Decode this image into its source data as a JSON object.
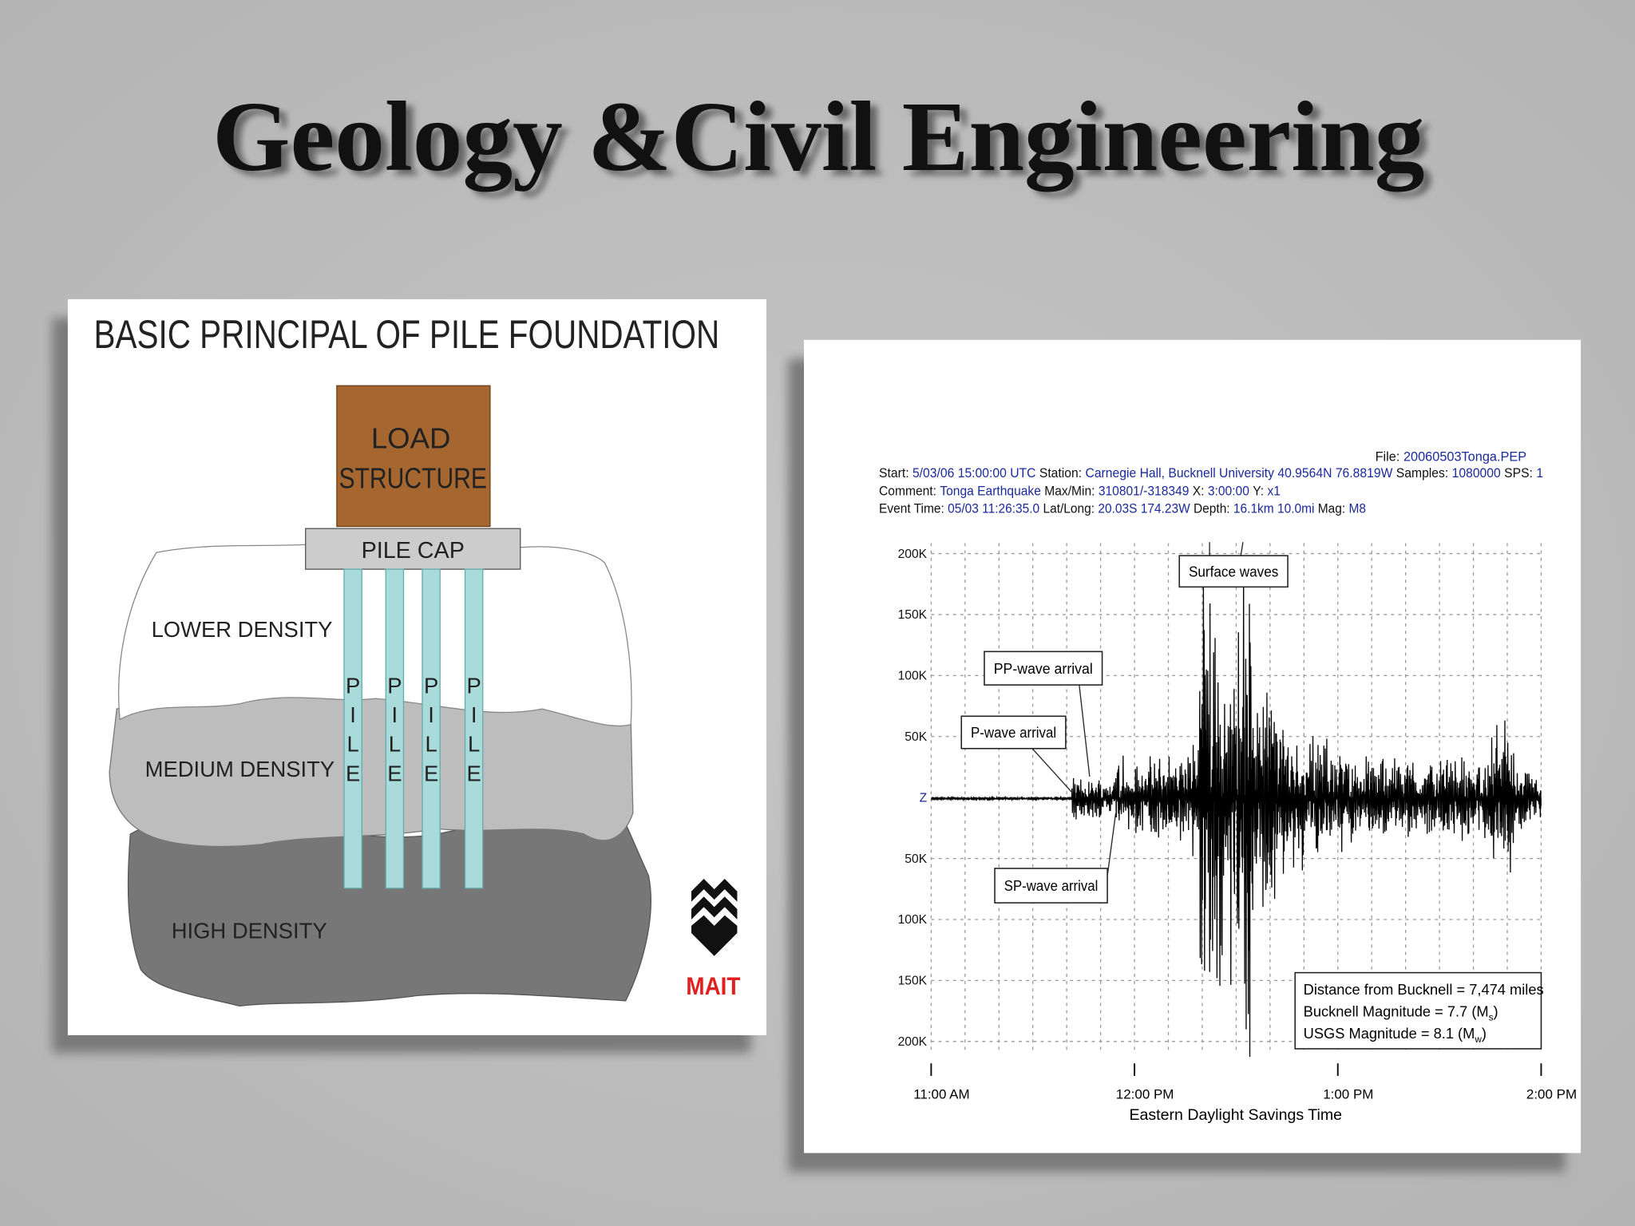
{
  "title": "Geology &Civil Engineering",
  "pile_diagram": {
    "heading": "BASIC PRINCIPAL OF PILE FOUNDATION",
    "load_structure": [
      "LOAD",
      "STRUCTURE"
    ],
    "pile_cap": "PILE CAP",
    "layers": [
      "LOWER DENSITY",
      "MEDIUM DENSITY",
      "HIGH DENSITY"
    ],
    "pile_letters": [
      "P",
      "I",
      "L",
      "E"
    ],
    "logo": "MAIT"
  },
  "seismogram": {
    "file": [
      "File:",
      "20060503Tonga.PEP"
    ],
    "header": [
      [
        [
          "Start:",
          "5/03/06 15:00:00 UTC"
        ],
        [
          "Station:",
          "Carnegie Hall, Bucknell University 40.9564N 76.8819W"
        ],
        [
          "Samples:",
          "1080000"
        ],
        [
          "SPS:",
          "1"
        ]
      ],
      [
        [
          "Comment:",
          "Tonga Earthquake"
        ],
        [
          "Max/Min:",
          "310801/-318349"
        ],
        [
          "X:",
          "3:00:00"
        ],
        [
          "Y:",
          "x1"
        ]
      ],
      [
        [
          "Event Time:",
          "05/03 11:26:35.0"
        ],
        [
          "Lat/Long:",
          "20.03S 174.23W"
        ],
        [
          "Depth:",
          "16.1km 10.0mi"
        ],
        [
          "Mag:",
          "M8"
        ]
      ]
    ],
    "y_labels": [
      "200K",
      "150K",
      "100K",
      "50K",
      "Z",
      "50K",
      "100K",
      "150K",
      "200K"
    ],
    "x_labels": [
      "11:00 AM",
      "12:00 PM",
      "1:00 PM",
      "2:00 PM"
    ],
    "x_axis_title": "Eastern Daylight Savings Time",
    "callouts": [
      "Surface waves",
      "PP-wave arrival",
      "P-wave arrival",
      "SP-wave arrival"
    ],
    "info": [
      [
        "Distance from Bucknell = 7,474 miles"
      ],
      [
        "Bucknell Magnitude = 7.7 (M",
        "s",
        ")"
      ],
      [
        "USGS Magnitude = 8.1 (M",
        "w",
        ")"
      ]
    ]
  }
}
